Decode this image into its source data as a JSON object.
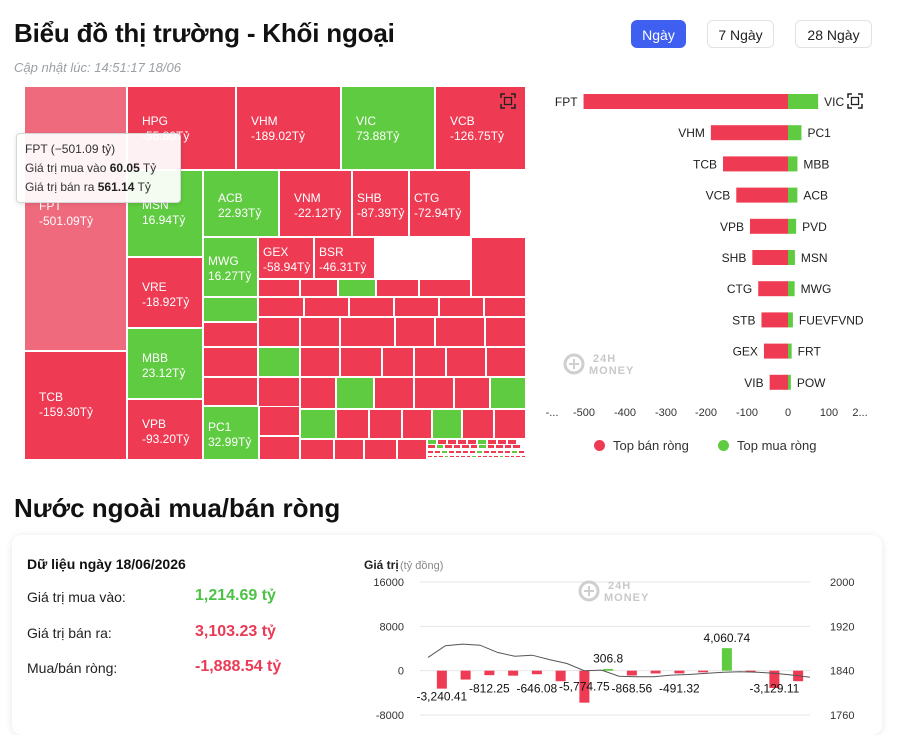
{
  "header": {
    "title": "Biểu đồ thị trường - Khối ngoại",
    "updated": "Cập nhật lúc: 14:51:17 18/06",
    "tabs": [
      "Ngày",
      "7 Ngày",
      "28 Ngày"
    ],
    "active_tab": "Ngày"
  },
  "colors": {
    "sell": "#ee3b53",
    "buy": "#5fcb41",
    "tab_active": "#3f5ff0",
    "fpt_highlight": "#f06a7d"
  },
  "tooltip": {
    "title": "FPT (−501.09 tỷ)",
    "buy_label": "Giá trị mua vào",
    "buy_value": "60.05",
    "sell_label": "Giá trị bán ra",
    "sell_value": "561.14",
    "unit": "Tỷ"
  },
  "treemap": {
    "labeled_tiles": [
      {
        "ticker": "FPT",
        "value": "-501.09Tỷ"
      },
      {
        "ticker": "HPG",
        "value": "-55.80Tỷ"
      },
      {
        "ticker": "VHM",
        "value": "-189.02Tỷ"
      },
      {
        "ticker": "VIC",
        "value": "73.88Tỷ"
      },
      {
        "ticker": "VCB",
        "value": "-126.75Tỷ"
      },
      {
        "ticker": "MSN",
        "value": "16.94Tỷ"
      },
      {
        "ticker": "ACB",
        "value": "22.93Tỷ"
      },
      {
        "ticker": "VNM",
        "value": "-22.12Tỷ"
      },
      {
        "ticker": "SHB",
        "value": "-87.39Tỷ"
      },
      {
        "ticker": "CTG",
        "value": "-72.94Tỷ"
      },
      {
        "ticker": "MWG",
        "value": "16.27Tỷ"
      },
      {
        "ticker": "GEX",
        "value": "-58.94Tỷ"
      },
      {
        "ticker": "BSR",
        "value": "-46.31Tỷ"
      },
      {
        "ticker": "VRE",
        "value": "-18.92Tỷ"
      },
      {
        "ticker": "MBB",
        "value": "23.12Tỷ"
      },
      {
        "ticker": "TCB",
        "value": "-159.30Tỷ"
      },
      {
        "ticker": "VPB",
        "value": "-93.20Tỷ"
      },
      {
        "ticker": "PC1",
        "value": "32.99Tỷ"
      }
    ]
  },
  "chart_data": [
    {
      "type": "bar",
      "orientation": "horizontal",
      "sell_tickers": [
        "FPT",
        "VHM",
        "TCB",
        "VCB",
        "VPB",
        "SHB",
        "CTG",
        "STB",
        "GEX",
        "VIB"
      ],
      "buy_tickers": [
        "VIC",
        "PC1",
        "MBB",
        "ACB",
        "PVD",
        "MSN",
        "MWG",
        "FUEVFVND",
        "FRT",
        "POW"
      ],
      "series": [
        {
          "name": "Top bán ròng",
          "values": [
            -501.09,
            -189.02,
            -159.3,
            -126.75,
            -93.2,
            -87.39,
            -72.94,
            -65,
            -58.94,
            -45
          ]
        },
        {
          "name": "Top mua ròng",
          "values": [
            73.88,
            32.99,
            23.12,
            22.93,
            20,
            16.94,
            16.27,
            12,
            9,
            7
          ]
        }
      ],
      "x_ticks": [
        "-...",
        "-500",
        "-400",
        "-300",
        "-200",
        "-100",
        "0",
        "100",
        "2..."
      ],
      "xlim": [
        -600,
        150
      ],
      "legend": "bottom"
    },
    {
      "type": "bar+line",
      "series": [
        {
          "name": "Giá trị",
          "values": [
            -3240.41,
            -1600,
            -812.25,
            -900,
            -646.08,
            -1900,
            -5774.75,
            306.8,
            -868.56,
            -500,
            -491.32,
            -300,
            4060.74,
            -300,
            -3129.11,
            -1900
          ]
        },
        {
          "name": "VN-Index",
          "values": [
            1864,
            1885,
            1888,
            1886,
            1873,
            1866,
            1868,
            1860,
            1853,
            1840,
            1841,
            1830,
            1829,
            1829,
            1832,
            1833,
            1835,
            1837,
            1838,
            1837,
            1835,
            1832,
            1828
          ]
        }
      ],
      "bar_labels": [
        "-3,240.41",
        "-812.25",
        "-646.08",
        "-5,774.75",
        "306.8",
        "-868.56",
        "-491.32",
        "4,060.74",
        "-3,129.11"
      ],
      "ylabel": "Giá trị",
      "ylabel_unit": "(tỷ đồng)",
      "y_ticks_left": [
        "16000",
        "8000",
        "0",
        "-8000"
      ],
      "y_ticks_right": [
        "2000",
        "1920",
        "1840",
        "1760"
      ],
      "ylim_left": [
        -8000,
        16000
      ],
      "ylim_right": [
        1760,
        2000
      ]
    }
  ],
  "legend": {
    "sell": "Top bán ròng",
    "buy": "Top mua ròng"
  },
  "watermark": {
    "line1": "24H",
    "line2": "MONEY"
  },
  "net": {
    "title": "Nước ngoài mua/bán ròng",
    "date_label": "Dữ liệu ngày 18/06/2026",
    "rows": [
      {
        "label": "Giá trị mua vào:",
        "value": "1,214.69 tỷ"
      },
      {
        "label": "Giá trị bán ra:",
        "value": "3,103.23 tỷ"
      },
      {
        "label": "Mua/bán ròng:",
        "value": "-1,888.54 tỷ"
      }
    ]
  }
}
